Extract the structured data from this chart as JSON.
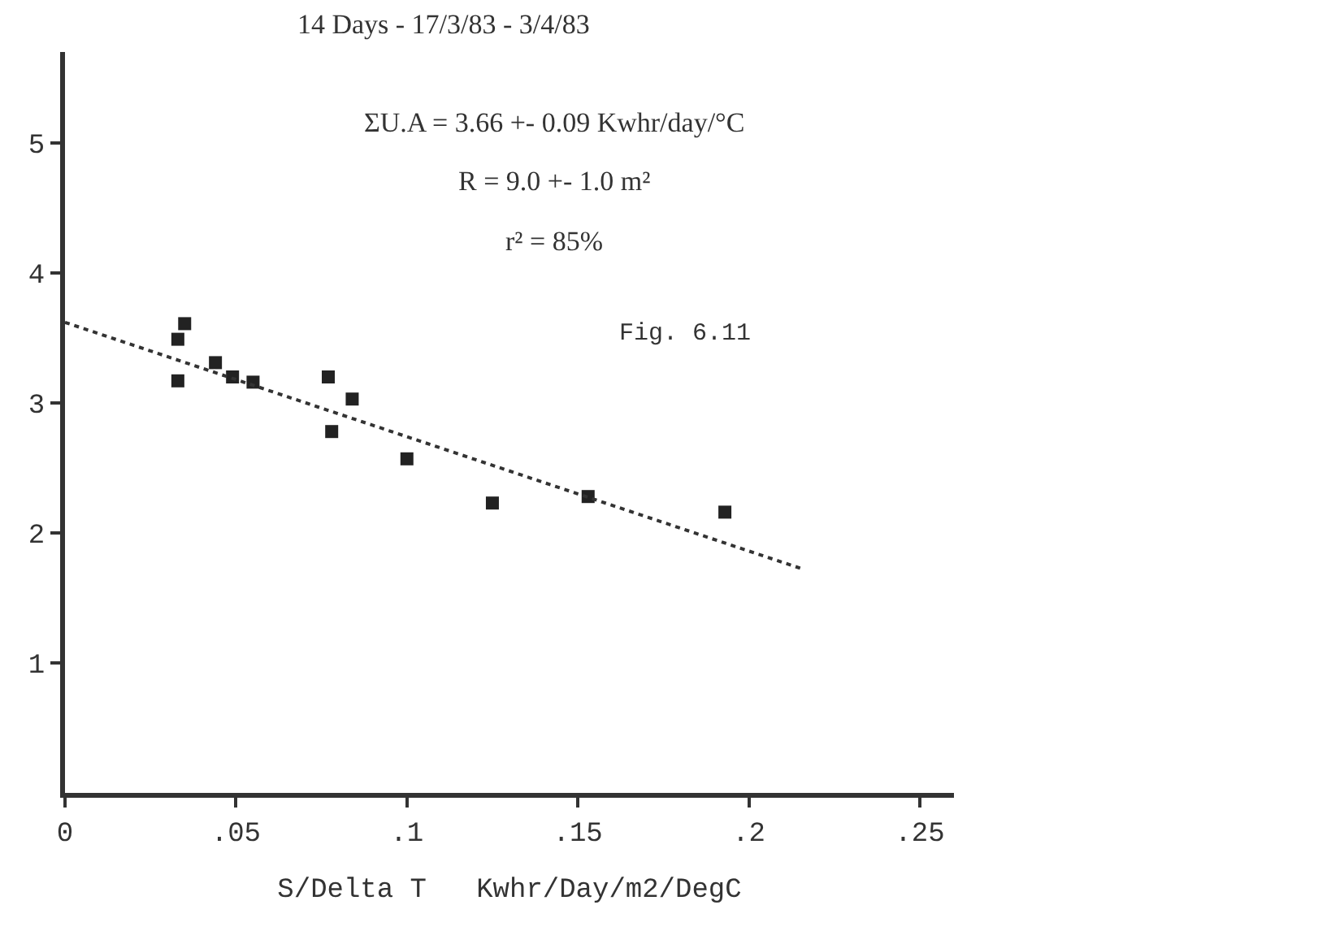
{
  "chart_data": {
    "type": "scatter",
    "title": "14 Days - 17/3/83 - 3/4/83",
    "xlabel": "S/Delta T   Kwhr/Day/m2/DegC",
    "annotations": [
      "ΣU.A = 3.66 +- 0.09 Kwhr/day/°C",
      "R = 9.0 +- 1.0 m²",
      "r² = 85%",
      "Fig. 6.11"
    ],
    "marker": "square",
    "grid": false,
    "xlim": [
      0,
      0.26
    ],
    "xticks": [
      {
        "value": 0,
        "label": "0"
      },
      {
        "value": 0.05,
        "label": ".05"
      },
      {
        "value": 0.1,
        "label": ".1"
      },
      {
        "value": 0.15,
        "label": ".15"
      },
      {
        "value": 0.2,
        "label": ".2"
      },
      {
        "value": 0.25,
        "label": ".25"
      }
    ],
    "ylim": [
      0,
      5.7
    ],
    "yticks": [
      1,
      2,
      3,
      4,
      5
    ],
    "series": [
      {
        "color": "#222222",
        "x": [
          0.035,
          0.033,
          0.033,
          0.044,
          0.049,
          0.055,
          0.077,
          0.084,
          0.078,
          0.1,
          0.125,
          0.153,
          0.193
        ],
        "values": [
          3.61,
          3.49,
          3.17,
          3.31,
          3.2,
          3.16,
          3.2,
          3.03,
          2.78,
          2.57,
          2.23,
          2.28,
          2.16
        ]
      },
      {
        "type": "line",
        "marker": "none",
        "color": "#333333",
        "line_style": "dotted",
        "x": [
          0,
          0.216
        ],
        "values": [
          3.62,
          1.72
        ]
      }
    ]
  }
}
